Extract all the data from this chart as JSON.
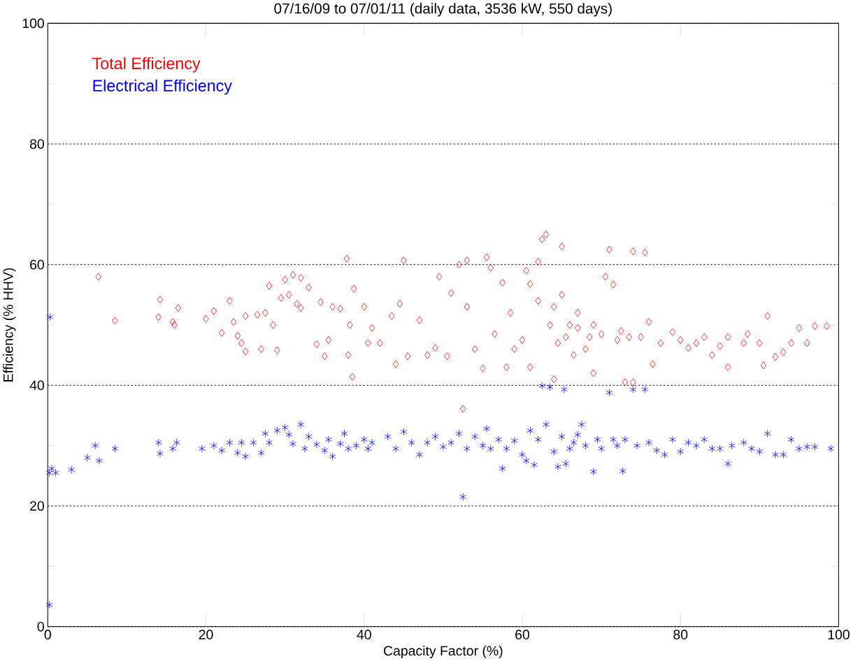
{
  "chart_data": {
    "type": "scatter",
    "title": "07/16/09 to 07/01/11 (daily data, 3536 kW, 550 days)",
    "xlabel": "Capacity Factor (%)",
    "ylabel": "Efficiency (% HHV)",
    "xlim": [
      0,
      100
    ],
    "ylim": [
      0,
      100
    ],
    "xticks": [
      0,
      20,
      40,
      60,
      80,
      100
    ],
    "yticks": [
      0,
      20,
      40,
      60,
      80,
      100
    ],
    "grid": "y",
    "legend": "top left",
    "series": [
      {
        "name": "Total Efficiency",
        "color": "#ff0000",
        "marker": "diamond",
        "x": [
          6.4,
          8.5,
          14,
          14.2,
          15.8,
          16,
          16.5,
          20,
          21,
          22,
          23,
          23.5,
          24,
          24.5,
          25,
          25,
          26.5,
          27,
          27.5,
          28,
          28.5,
          29,
          29.5,
          30,
          30.5,
          31,
          31.5,
          32,
          32,
          33,
          34,
          34.5,
          35,
          35.5,
          36,
          37,
          37.8,
          38,
          38.2,
          38.5,
          38.7,
          40,
          40.5,
          41,
          42,
          43.5,
          44,
          44.5,
          45,
          45.5,
          47,
          48,
          49,
          49.5,
          50.5,
          51,
          52,
          52.5,
          53,
          53,
          54,
          55,
          55.5,
          56,
          56.5,
          57.5,
          58,
          58.5,
          59,
          60,
          60.5,
          61,
          61,
          62,
          62,
          62.5,
          63,
          63.5,
          64,
          64,
          64.5,
          65,
          65,
          65.5,
          66,
          66.5,
          67,
          67,
          68,
          68.5,
          69,
          69,
          70,
          70.5,
          71,
          71.5,
          72,
          72.5,
          73,
          73.5,
          74,
          74,
          75,
          75.5,
          76,
          76.5,
          77.5,
          79,
          80,
          81,
          82,
          83,
          84,
          85,
          86,
          86,
          88,
          88.5,
          90,
          90.5,
          91,
          92,
          93,
          94,
          95,
          96,
          97,
          98.5
        ],
        "values": [
          58,
          50.7,
          51.3,
          54.2,
          50.5,
          50,
          52.8,
          51,
          52.3,
          48.7,
          54,
          50.5,
          48.2,
          47,
          45.6,
          51.5,
          51.7,
          46,
          52,
          56.5,
          50,
          45.8,
          54.5,
          57.5,
          55,
          58.3,
          53.5,
          52.8,
          57.8,
          56.2,
          46.8,
          53.8,
          44.8,
          47.5,
          53,
          52.7,
          61,
          45,
          50,
          41.4,
          56,
          53,
          47,
          49.5,
          47,
          51.5,
          43.5,
          53.5,
          60.7,
          44.8,
          50.8,
          45,
          46.2,
          58,
          44.8,
          55.3,
          60,
          36.1,
          53,
          60.7,
          46,
          42.8,
          61.2,
          59.5,
          48.5,
          57,
          43,
          52,
          46,
          47.5,
          59,
          43,
          56.8,
          60.5,
          54,
          64.2,
          65,
          50,
          53,
          41,
          47,
          55,
          63,
          48,
          50,
          45,
          49.5,
          52,
          46,
          48,
          42,
          50,
          48.5,
          58,
          62.5,
          56.7,
          47.5,
          49,
          40.5,
          48,
          62.2,
          40.5,
          48,
          62,
          50.5,
          43.5,
          47,
          48.8,
          47.5,
          46.2,
          47,
          48,
          45,
          46.5,
          48,
          43,
          47,
          48.5,
          47,
          43.3,
          51.5,
          44.7,
          45.5,
          47,
          49.5,
          47,
          49.8,
          49.8
        ]
      },
      {
        "name": "Electrical Efficiency",
        "color": "#0000ff",
        "marker": "cross",
        "x": [
          0.2,
          0.3,
          0.2,
          0.5,
          1,
          3,
          5,
          6,
          6.5,
          8.5,
          14,
          14.2,
          15.8,
          16.3,
          19.5,
          21,
          22,
          23,
          24,
          24.5,
          25,
          26,
          27,
          27.5,
          28,
          29,
          30,
          30.5,
          31,
          32,
          32.5,
          33,
          34,
          35,
          35.5,
          36,
          37,
          37.5,
          38,
          39,
          40,
          40.5,
          41,
          43,
          44,
          45,
          46,
          47,
          48,
          49,
          50,
          51,
          52,
          52.5,
          53,
          54,
          55,
          55.5,
          56,
          57,
          57.5,
          58,
          59,
          60,
          60.5,
          61,
          61.5,
          62,
          62.5,
          63,
          63.5,
          64,
          64.5,
          65,
          65.3,
          65.5,
          66,
          66.5,
          67,
          67.5,
          68,
          69,
          69.5,
          70,
          71,
          71.5,
          72,
          72.7,
          73,
          74,
          74.5,
          75.5,
          76,
          77,
          78,
          79,
          80,
          81,
          82,
          83,
          84,
          85,
          86,
          86.5,
          88,
          89,
          90,
          91,
          92,
          93,
          94,
          95,
          96,
          97,
          99
        ],
        "values": [
          3.6,
          51.3,
          25.5,
          26.2,
          25.5,
          26,
          28,
          30,
          27.5,
          29.5,
          30.5,
          28.7,
          29.5,
          30.5,
          29.5,
          30,
          29.2,
          30.5,
          28.8,
          30.5,
          28.2,
          30.5,
          28.8,
          32,
          30.5,
          32.5,
          33,
          31.8,
          30.3,
          33.5,
          29.5,
          31.5,
          30.2,
          29.2,
          31,
          28.2,
          30.3,
          32,
          29.5,
          30,
          31,
          29.5,
          30.5,
          31.5,
          29.5,
          32.3,
          30.5,
          28.5,
          30.5,
          31.5,
          29.8,
          30.5,
          32,
          21.5,
          29.5,
          31.5,
          30,
          32.8,
          29.5,
          31,
          26.2,
          29.5,
          30.8,
          28.5,
          27.5,
          32.5,
          26.8,
          31,
          39.9,
          33.5,
          39.7,
          29,
          26.5,
          31.5,
          39.3,
          27,
          29.5,
          30.5,
          31.8,
          33.5,
          30,
          25.7,
          31,
          29.5,
          38.8,
          31,
          30,
          25.8,
          31,
          39.3,
          30,
          39.3,
          30.5,
          29.2,
          28.5,
          31,
          29,
          30.5,
          30,
          31,
          29.5,
          29.5,
          27,
          30,
          30.5,
          29.5,
          29,
          32,
          28.5,
          28.5,
          31,
          29.5,
          29.8,
          29.8,
          29.5
        ]
      }
    ]
  }
}
